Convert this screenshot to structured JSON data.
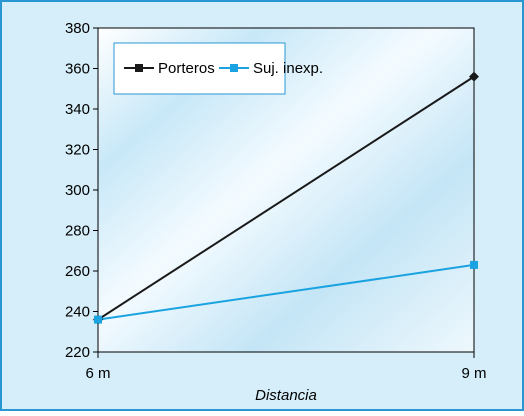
{
  "chart_data": {
    "type": "line",
    "title": "",
    "xlabel": "Distancia",
    "ylabel": "",
    "categories": [
      "6 m",
      "9 m"
    ],
    "ylim": [
      220,
      380
    ],
    "yticks": [
      220,
      240,
      260,
      280,
      300,
      320,
      340,
      360,
      380
    ],
    "grid": false,
    "legend_position": "top-left",
    "series": [
      {
        "name": "Porteros",
        "values": [
          236,
          356
        ],
        "color": "#1a1a1a",
        "marker": "diamond"
      },
      {
        "name": "Suj. inexp.",
        "values": [
          236,
          263
        ],
        "color": "#1aa3e0",
        "marker": "square"
      }
    ]
  },
  "colors": {
    "outer_background": "#d6eef9",
    "outer_border": "#2a97d3",
    "plot_gradient_light": "#ffffff",
    "plot_gradient_dark": "#c7e7f7"
  }
}
